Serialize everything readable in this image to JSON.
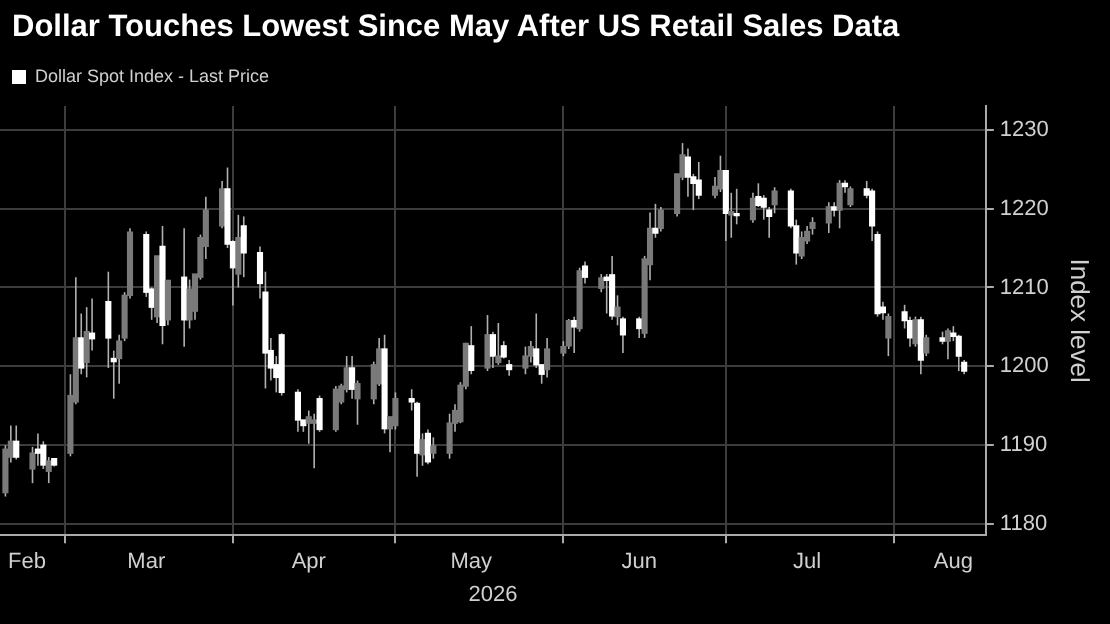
{
  "chart_data": {
    "type": "candlestick",
    "title": "Dollar Touches Lowest Since May After US Retail Sales Data",
    "xlabel": "2026",
    "ylabel": "Index level",
    "legend": "top left",
    "grid": true,
    "xlim": [
      "2026-02-17",
      "2026-08-18"
    ],
    "xticks": [
      {
        "value": "2026-02-22",
        "label": "Feb"
      },
      {
        "value": "2026-03-01",
        "label": null
      },
      {
        "value": "2026-03-16",
        "label": "Mar"
      },
      {
        "value": "2026-04-01",
        "label": null
      },
      {
        "value": "2026-04-15",
        "label": "Apr"
      },
      {
        "value": "2026-05-01",
        "label": null
      },
      {
        "value": "2026-05-15",
        "label": "May"
      },
      {
        "value": "2026-06-01",
        "label": null
      },
      {
        "value": "2026-06-15",
        "label": "Jun"
      },
      {
        "value": "2026-07-01",
        "label": null
      },
      {
        "value": "2026-07-16",
        "label": "Jul"
      },
      {
        "value": "2026-08-01",
        "label": null
      },
      {
        "value": "2026-08-12",
        "label": "Aug"
      }
    ],
    "ylim": [
      1178.6,
      1233
    ],
    "yticks": [
      1180,
      1190,
      1200,
      1210,
      1220,
      1230
    ],
    "x": [
      "2026-02-18",
      "2026-02-19",
      "2026-02-20",
      "2026-02-23",
      "2026-02-24",
      "2026-02-25",
      "2026-02-26",
      "2026-02-27",
      "2026-03-02",
      "2026-03-03",
      "2026-03-04",
      "2026-03-05",
      "2026-03-06",
      "2026-03-09",
      "2026-03-10",
      "2026-03-11",
      "2026-03-12",
      "2026-03-13",
      "2026-03-16",
      "2026-03-17",
      "2026-03-18",
      "2026-03-19",
      "2026-03-20",
      "2026-03-23",
      "2026-03-24",
      "2026-03-25",
      "2026-03-26",
      "2026-03-27",
      "2026-03-30",
      "2026-03-31",
      "2026-04-01",
      "2026-04-02",
      "2026-04-03",
      "2026-04-06",
      "2026-04-07",
      "2026-04-08",
      "2026-04-09",
      "2026-04-10",
      "2026-04-13",
      "2026-04-14",
      "2026-04-15",
      "2026-04-16",
      "2026-04-17",
      "2026-04-20",
      "2026-04-21",
      "2026-04-22",
      "2026-04-23",
      "2026-04-24",
      "2026-04-27",
      "2026-04-28",
      "2026-04-29",
      "2026-04-30",
      "2026-05-01",
      "2026-05-04",
      "2026-05-05",
      "2026-05-06",
      "2026-05-07",
      "2026-05-08",
      "2026-05-11",
      "2026-05-12",
      "2026-05-13",
      "2026-05-14",
      "2026-05-15",
      "2026-05-18",
      "2026-05-19",
      "2026-05-20",
      "2026-05-21",
      "2026-05-22",
      "2026-05-25",
      "2026-05-26",
      "2026-05-27",
      "2026-05-28",
      "2026-05-29",
      "2026-06-01",
      "2026-06-02",
      "2026-06-03",
      "2026-06-04",
      "2026-06-05",
      "2026-06-08",
      "2026-06-09",
      "2026-06-10",
      "2026-06-11",
      "2026-06-12",
      "2026-06-15",
      "2026-06-16",
      "2026-06-17",
      "2026-06-18",
      "2026-06-19",
      "2026-06-22",
      "2026-06-23",
      "2026-06-24",
      "2026-06-25",
      "2026-06-26",
      "2026-06-29",
      "2026-06-30",
      "2026-07-01",
      "2026-07-02",
      "2026-07-03",
      "2026-07-06",
      "2026-07-07",
      "2026-07-08",
      "2026-07-09",
      "2026-07-10",
      "2026-07-13",
      "2026-07-14",
      "2026-07-15",
      "2026-07-16",
      "2026-07-17",
      "2026-07-20",
      "2026-07-21",
      "2026-07-22",
      "2026-07-23",
      "2026-07-24",
      "2026-07-27",
      "2026-07-28",
      "2026-07-29",
      "2026-07-30",
      "2026-07-31",
      "2026-08-03",
      "2026-08-04",
      "2026-08-05",
      "2026-08-06",
      "2026-08-07",
      "2026-08-10",
      "2026-08-11",
      "2026-08-12",
      "2026-08-13",
      "2026-08-14"
    ],
    "series": [
      {
        "name": "Dollar Spot Index - Last Price",
        "colors": [
          "#7a7a7a",
          "#7a7a7a",
          "#ffffff",
          "#7a7a7a",
          "#ffffff",
          "#ffffff",
          "#7a7a7a",
          "#ffffff",
          "#7a7a7a",
          "#7a7a7a",
          "#ffffff",
          "#7a7a7a",
          "#ffffff",
          "#ffffff",
          "#ffffff",
          "#7a7a7a",
          "#7a7a7a",
          "#7a7a7a",
          "#ffffff",
          "#ffffff",
          "#7a7a7a",
          "#ffffff",
          "#7a7a7a",
          "#ffffff",
          "#7a7a7a",
          "#7a7a7a",
          "#7a7a7a",
          "#7a7a7a",
          "#7a7a7a",
          "#ffffff",
          "#ffffff",
          "#7a7a7a",
          "#ffffff",
          "#ffffff",
          "#ffffff",
          "#ffffff",
          "#ffffff",
          "#ffffff",
          "#ffffff",
          "#ffffff",
          "#7a7a7a",
          "#7a7a7a",
          "#ffffff",
          "#7a7a7a",
          "#7a7a7a",
          "#7a7a7a",
          "#ffffff",
          "#7a7a7a",
          "#7a7a7a",
          "#7a7a7a",
          "#ffffff",
          "#7a7a7a",
          "#7a7a7a",
          "#ffffff",
          "#ffffff",
          "#7a7a7a",
          "#ffffff",
          "#7a7a7a",
          "#7a7a7a",
          "#7a7a7a",
          "#7a7a7a",
          "#7a7a7a",
          "#ffffff",
          "#7a7a7a",
          "#ffffff",
          "#7a7a7a",
          "#ffffff",
          "#ffffff",
          "#7a7a7a",
          "#7a7a7a",
          "#ffffff",
          "#ffffff",
          "#7a7a7a",
          "#7a7a7a",
          "#7a7a7a",
          "#ffffff",
          "#7a7a7a",
          "#ffffff",
          "#7a7a7a",
          "#ffffff",
          "#ffffff",
          "#7a7a7a",
          "#ffffff",
          "#ffffff",
          "#7a7a7a",
          "#7a7a7a",
          "#ffffff",
          "#7a7a7a",
          "#7a7a7a",
          "#7a7a7a",
          "#ffffff",
          "#ffffff",
          "#ffffff",
          "#7a7a7a",
          "#7a7a7a",
          "#ffffff",
          "#7a7a7a",
          "#ffffff",
          "#7a7a7a",
          "#ffffff",
          "#ffffff",
          "#ffffff",
          "#7a7a7a",
          "#ffffff",
          "#ffffff",
          "#7a7a7a",
          "#7a7a7a",
          "#7a7a7a",
          "#7a7a7a",
          "#ffffff",
          "#7a7a7a",
          "#ffffff",
          "#7a7a7a",
          "#ffffff",
          "#ffffff",
          "#ffffff",
          "#ffffff",
          "#7a7a7a",
          "#ffffff",
          "#ffffff",
          "#7a7a7a",
          "#ffffff",
          "#7a7a7a",
          "#ffffff",
          "#7a7a7a",
          "#ffffff",
          "#ffffff",
          "#ffffff"
        ],
        "ohlc": [
          [
            1184,
            1190,
            1183.5,
            1189.5
          ],
          [
            1188.5,
            1192.5,
            1187.8,
            1190.5
          ],
          [
            1190.5,
            1192.5,
            1188.2,
            1188.5
          ],
          [
            1187,
            1189.8,
            1185.2,
            1189
          ],
          [
            1189.5,
            1191.5,
            1187.4,
            1189
          ],
          [
            1190,
            1190.5,
            1187,
            1187.5
          ],
          [
            1186.7,
            1188.5,
            1185.2,
            1188
          ],
          [
            1188.3,
            1188.3,
            1187.3,
            1187.5
          ],
          [
            1189,
            1199,
            1188.6,
            1196.3
          ],
          [
            1195.5,
            1211.3,
            1195.2,
            1203.6
          ],
          [
            1203.6,
            1206.7,
            1199,
            1199.8
          ],
          [
            1200.5,
            1207.5,
            1198.6,
            1204.4
          ],
          [
            1204.2,
            1208.6,
            1202,
            1203.5
          ],
          [
            1208.2,
            1212,
            1199.8,
            1203.6
          ],
          [
            1201,
            1202,
            1195.9,
            1200.6
          ],
          [
            1201,
            1204,
            1197.8,
            1203.2
          ],
          [
            1203.6,
            1209.4,
            1203.2,
            1209
          ],
          [
            1209,
            1217.5,
            1208.6,
            1217
          ],
          [
            1216.7,
            1217.1,
            1208.8,
            1209.4
          ],
          [
            1209.8,
            1210,
            1205.9,
            1207.5
          ],
          [
            1206.3,
            1214,
            1205.5,
            1214
          ],
          [
            1215.2,
            1217.8,
            1202.8,
            1205.2
          ],
          [
            1205.9,
            1210.9,
            1205.2,
            1210.9
          ],
          [
            1211.3,
            1217.5,
            1202.5,
            1205.9
          ],
          [
            1205.9,
            1211,
            1204.8,
            1209.8
          ],
          [
            1207,
            1211.7,
            1205.9,
            1211.7
          ],
          [
            1211.3,
            1216.7,
            1211,
            1216.3
          ],
          [
            1215.2,
            1221.5,
            1213.6,
            1219.8
          ],
          [
            1217.8,
            1223.5,
            1217.5,
            1222.5
          ],
          [
            1222.5,
            1225.2,
            1215,
            1215.5
          ],
          [
            1215.8,
            1216,
            1207.7,
            1212.5
          ],
          [
            1211.7,
            1219.2,
            1210,
            1216.3
          ],
          [
            1217.8,
            1219,
            1211.3,
            1214.4
          ],
          [
            1214.4,
            1215.2,
            1208.6,
            1210.5
          ],
          [
            1209.4,
            1212,
            1197.2,
            1201.7
          ],
          [
            1202,
            1203.6,
            1198.2,
            1199.8
          ],
          [
            1200.2,
            1201.3,
            1196.7,
            1198.6
          ],
          [
            1204,
            1204.2,
            1196.3,
            1196.7
          ],
          [
            1196.7,
            1197.1,
            1191.7,
            1193.2
          ],
          [
            1193.2,
            1193.2,
            1191.7,
            1192.5
          ],
          [
            1192.8,
            1194.4,
            1190.2,
            1193.6
          ],
          [
            1192.8,
            1194,
            1187.1,
            1193.2
          ],
          [
            1195.9,
            1196.3,
            1191.7,
            1192
          ],
          [
            1192,
            1197.5,
            1191.7,
            1197.1
          ],
          [
            1195.5,
            1197.8,
            1195.2,
            1197.5
          ],
          [
            1197.1,
            1201.3,
            1196.7,
            1199.8
          ],
          [
            1199.8,
            1201.3,
            1195.9,
            1197.1
          ],
          [
            1195.9,
            1198.2,
            1192.6,
            1197.8
          ],
          [
            1195.9,
            1200.6,
            1195.2,
            1200.2
          ],
          [
            1197.8,
            1203.6,
            1197.5,
            1202.2
          ],
          [
            1202.2,
            1204,
            1191.5,
            1192.1
          ],
          [
            1192.1,
            1193.6,
            1189.1,
            1193.6
          ],
          [
            1192.5,
            1196.7,
            1192,
            1195.9
          ],
          [
            1195.9,
            1197.1,
            1194.4,
            1195.5
          ],
          [
            1195.3,
            1195.5,
            1186,
            1189
          ],
          [
            1188.8,
            1191.5,
            1187.4,
            1190.7
          ],
          [
            1191.5,
            1192,
            1187.6,
            1187.9
          ],
          [
            1189,
            1191,
            1188.3,
            1189.9
          ],
          [
            1189,
            1194,
            1188.3,
            1192.8
          ],
          [
            1192.8,
            1195.2,
            1191.7,
            1194.4
          ],
          [
            1193,
            1198,
            1192.8,
            1197.6
          ],
          [
            1197.5,
            1203,
            1197.1,
            1202.9
          ],
          [
            1202.6,
            1205.1,
            1199,
            1199.5
          ],
          [
            1199.8,
            1206.5,
            1199.4,
            1204
          ],
          [
            1204,
            1204.4,
            1199.8,
            1201.3
          ],
          [
            1200.5,
            1205.5,
            1200.2,
            1201.3
          ],
          [
            1202.6,
            1203.2,
            1201,
            1201.2
          ],
          [
            1200.2,
            1200.8,
            1198.8,
            1199.6
          ],
          [
            1199.8,
            1202.5,
            1199,
            1201.3
          ],
          [
            1201.3,
            1203.2,
            1200.5,
            1202.5
          ],
          [
            1202.2,
            1206.7,
            1199.8,
            1200.2
          ],
          [
            1200.2,
            1200.2,
            1197.8,
            1199
          ],
          [
            1199.6,
            1203.6,
            1198.6,
            1202.2
          ],
          [
            1201.7,
            1203.2,
            1201.3,
            1202.5
          ],
          [
            1202.6,
            1206,
            1202.2,
            1205.8
          ],
          [
            1205.8,
            1206.3,
            1201.7,
            1205
          ],
          [
            1204.8,
            1212.5,
            1204.4,
            1212.1
          ],
          [
            1212.7,
            1213.3,
            1210.5,
            1211.3
          ],
          [
            1209.9,
            1211.7,
            1209.4,
            1211.2
          ],
          [
            1211.3,
            1211.7,
            1206.7,
            1210.9
          ],
          [
            1211.6,
            1214,
            1205.9,
            1206.4
          ],
          [
            1206.3,
            1209,
            1205.2,
            1207.5
          ],
          [
            1206,
            1206.3,
            1201.7,
            1204
          ],
          [
            1206,
            1206.3,
            1203.6,
            1204.8
          ],
          [
            1204.2,
            1214,
            1203.6,
            1213.6
          ],
          [
            1212.9,
            1219.5,
            1210.9,
            1217.5
          ],
          [
            1217.5,
            1220.6,
            1216.3,
            1216.9
          ],
          [
            1217.5,
            1220.2,
            1217.1,
            1219.8
          ],
          [
            1219.4,
            1224.4,
            1219,
            1224.4
          ],
          [
            1224,
            1228.3,
            1223.6,
            1226.8
          ],
          [
            1226.5,
            1227.6,
            1221.5,
            1224
          ],
          [
            1224,
            1224.4,
            1219.8,
            1223.2
          ],
          [
            1223.6,
            1225.9,
            1221.2,
            1221.7
          ],
          [
            1221.7,
            1224,
            1221.3,
            1222.8
          ],
          [
            1222.5,
            1226.7,
            1222.1,
            1224.8
          ],
          [
            1224.8,
            1224.8,
            1215.9,
            1219.4
          ],
          [
            1219.2,
            1222,
            1216.3,
            1219.6
          ],
          [
            1219.3,
            1222.5,
            1218,
            1219.1
          ],
          [
            1218.6,
            1222,
            1218.2,
            1221.3
          ],
          [
            1221.5,
            1223.2,
            1220.2,
            1220.4
          ],
          [
            1221.3,
            1221.7,
            1218.6,
            1220.2
          ],
          [
            1219.8,
            1220.2,
            1216.3,
            1219
          ],
          [
            1220.5,
            1222.7,
            1219.4,
            1222.2
          ],
          [
            1222.2,
            1222.5,
            1217.5,
            1217.8
          ],
          [
            1217.8,
            1218.6,
            1212.9,
            1214.4
          ],
          [
            1214,
            1217.1,
            1213.6,
            1216.3
          ],
          [
            1215.9,
            1217.8,
            1215.5,
            1217.1
          ],
          [
            1217.5,
            1218.9,
            1216.7,
            1218.2
          ],
          [
            1218.2,
            1220.8,
            1216.9,
            1220.2
          ],
          [
            1220.2,
            1220.8,
            1219,
            1219.8
          ],
          [
            1219.8,
            1223.6,
            1217.5,
            1223.2
          ],
          [
            1223.2,
            1223.6,
            1222,
            1222.8
          ],
          [
            1220.5,
            1222.8,
            1220.2,
            1222.5
          ],
          [
            1222.5,
            1223.5,
            1221.3,
            1221.7
          ],
          [
            1222.2,
            1222.5,
            1215.9,
            1217.8
          ],
          [
            1216.7,
            1217.1,
            1206.3,
            1206.7
          ],
          [
            1207.5,
            1208.2,
            1205.9,
            1206.8
          ],
          [
            1203.6,
            1206.7,
            1201.3,
            1206.3
          ],
          [
            1206.9,
            1207.8,
            1204.8,
            1205.8
          ],
          [
            1205.8,
            1206.3,
            1202.5,
            1203.6
          ],
          [
            1202.9,
            1206.3,
            1202.5,
            1205.9
          ],
          [
            1205.9,
            1206.3,
            1199,
            1200.8
          ],
          [
            1201.7,
            1204,
            1201.3,
            1203.6
          ],
          [
            1203.6,
            1204.4,
            1202.8,
            1203.2
          ],
          [
            1203.2,
            1204.8,
            1200.9,
            1204.5
          ],
          [
            1204.2,
            1205.1,
            1203.2,
            1203.8
          ],
          [
            1203.8,
            1204,
            1199.4,
            1201.3
          ],
          [
            1200.5,
            1200.8,
            1199,
            1199.4
          ]
        ]
      }
    ]
  }
}
